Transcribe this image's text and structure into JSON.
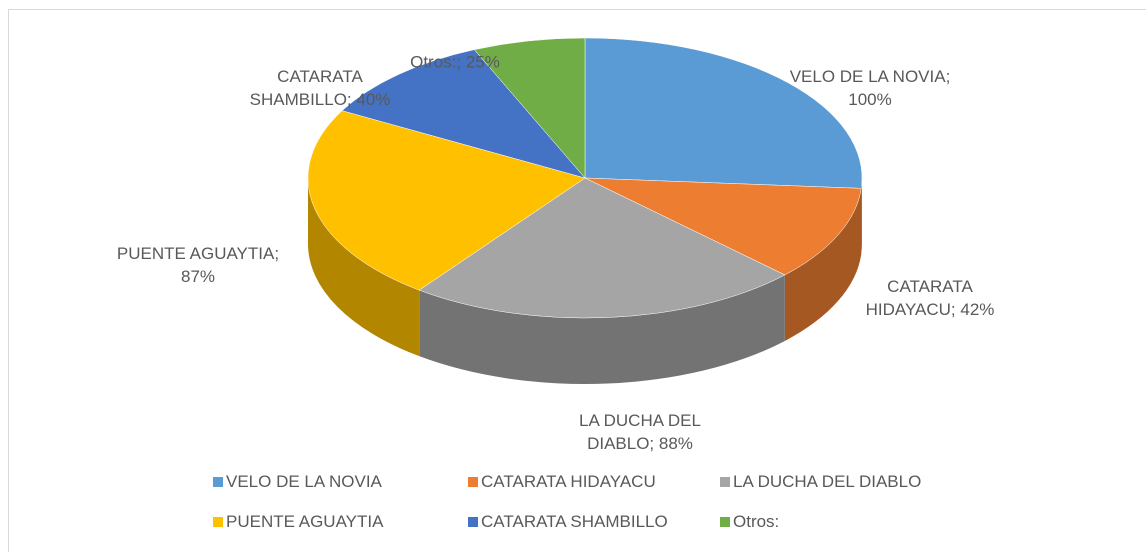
{
  "chart_data": {
    "type": "pie3d",
    "categories": [
      "VELO DE LA NOVIA",
      "CATARATA HIDAYACU",
      "LA DUCHA DEL DIABLO",
      "PUENTE AGUAYTIA",
      "CATARATA SHAMBILLO",
      "Otros:"
    ],
    "values": [
      100,
      42,
      88,
      87,
      40,
      25
    ],
    "value_labels": [
      "VELO DE LA NOVIA; 100%",
      "CATARATA HIDAYACU; 42%",
      "LA DUCHA DEL DIABLO; 88%",
      "PUENTE AGUAYTIA; 87%",
      "CATARATA SHAMBILLO; 40%",
      "Otros:; 25%"
    ],
    "colors": [
      "#5b9bd5",
      "#ed7d31",
      "#a5a5a5",
      "#ffc000",
      "#4472c4",
      "#70ad47"
    ],
    "legend": "bottom"
  }
}
